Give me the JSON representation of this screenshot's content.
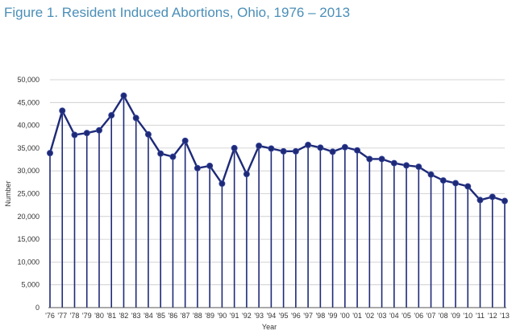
{
  "chart_data": {
    "type": "line",
    "title": "Figure 1. Resident Induced Abortions, Ohio, 1976 – 2013",
    "xlabel": "Year",
    "ylabel": "Number",
    "ylim": [
      0,
      50000
    ],
    "yticks": [
      0,
      5000,
      10000,
      15000,
      20000,
      25000,
      30000,
      35000,
      40000,
      45000,
      50000
    ],
    "ytick_labels": [
      "0",
      "5,000",
      "10,000",
      "15,000",
      "20,000",
      "25,000",
      "30,000",
      "35,000",
      "40,000",
      "45,000",
      "50,000"
    ],
    "categories": [
      "'76",
      "'77",
      "'78",
      "'79",
      "'80",
      "'81",
      "'82",
      "'83",
      "'84",
      "'85",
      "'86",
      "'87",
      "'88",
      "'89",
      "'90",
      "'91",
      "'92",
      "'93",
      "'94",
      "'95",
      "'96",
      "'97",
      "'98",
      "'99",
      "'00",
      "'01",
      "'02",
      "'03",
      "'04",
      "'05",
      "'06",
      "'07",
      "'08",
      "'09",
      "'10",
      "'11",
      "'12",
      "'13"
    ],
    "series": [
      {
        "name": "Resident Induced Abortions",
        "color": "#1e2a78",
        "values": [
          33900,
          43200,
          37900,
          38300,
          38900,
          42200,
          46500,
          41600,
          38000,
          33800,
          33100,
          36600,
          30600,
          31100,
          27200,
          35000,
          29300,
          35500,
          34900,
          34300,
          34300,
          35700,
          35100,
          34200,
          35200,
          34500,
          32600,
          32600,
          31700,
          31200,
          30900,
          29200,
          27900,
          27300,
          26600,
          23600,
          24300,
          23400
        ]
      }
    ],
    "grid": "horizontal"
  }
}
